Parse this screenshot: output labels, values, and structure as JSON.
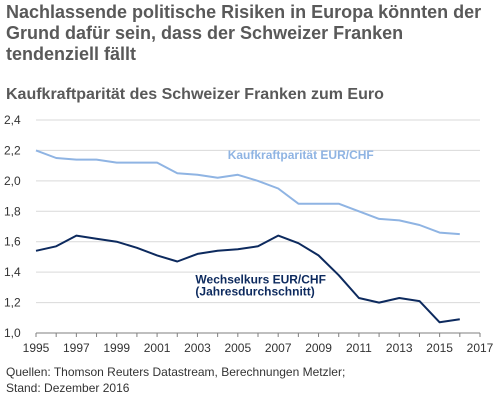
{
  "header": {
    "title": "Nachlassende politische Risiken in Europa könnten der Grund dafür sein, dass der Schweizer Franken tendenziell fällt",
    "subtitle": "Kaufkraftparität des Schweizer Franken zum Euro"
  },
  "chart_data": {
    "type": "line",
    "title": "",
    "xlabel": "",
    "ylabel": "",
    "xlim": [
      1995,
      2017
    ],
    "ylim": [
      1.0,
      2.4
    ],
    "x_ticks": [
      "1995",
      "1997",
      "1999",
      "2001",
      "2003",
      "2005",
      "2007",
      "2009",
      "2011",
      "2013",
      "2015",
      "2017"
    ],
    "y_ticks": [
      "1,0",
      "1,2",
      "1,4",
      "1,6",
      "1,8",
      "2,0",
      "2,2",
      "2,4"
    ],
    "grid": "horizontal",
    "series": [
      {
        "name": "Kaufkraftparität EUR/CHF",
        "color": "#8fb4e3",
        "x": [
          1995,
          1996,
          1997,
          1998,
          1999,
          2000,
          2001,
          2002,
          2003,
          2004,
          2005,
          2006,
          2007,
          2008,
          2009,
          2010,
          2011,
          2012,
          2013,
          2014,
          2015,
          2016
        ],
        "values": [
          2.2,
          2.15,
          2.14,
          2.14,
          2.12,
          2.12,
          2.12,
          2.05,
          2.04,
          2.02,
          2.04,
          2.0,
          1.95,
          1.85,
          1.85,
          1.85,
          1.8,
          1.75,
          1.74,
          1.71,
          1.66,
          1.65
        ]
      },
      {
        "name": "Wechselkurs EUR/CHF",
        "name_line2": "(Jahresdurchschnitt)",
        "color": "#0d2a5e",
        "x": [
          1995,
          1996,
          1997,
          1998,
          1999,
          2000,
          2001,
          2002,
          2003,
          2004,
          2005,
          2006,
          2007,
          2008,
          2009,
          2010,
          2011,
          2012,
          2013,
          2014,
          2015,
          2016
        ],
        "values": [
          1.54,
          1.57,
          1.64,
          1.62,
          1.6,
          1.56,
          1.51,
          1.47,
          1.52,
          1.54,
          1.55,
          1.57,
          1.64,
          1.59,
          1.51,
          1.38,
          1.23,
          1.2,
          1.23,
          1.21,
          1.07,
          1.09
        ]
      }
    ]
  },
  "footer": {
    "source_line1": "Quellen: Thomson Reuters Datastream, Berechnungen Metzler;",
    "source_line2": "Stand: Dezember 2016"
  }
}
